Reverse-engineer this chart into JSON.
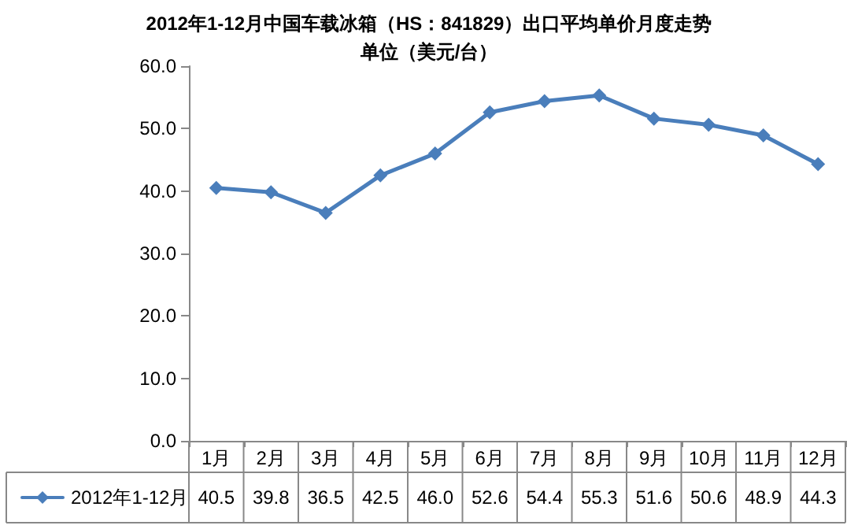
{
  "chart_data": {
    "type": "line",
    "title": "2012年1-12月中国车载冰箱（HS：841829）出口平均单价月度走势",
    "subtitle": "单位（美元/台）",
    "categories": [
      "1月",
      "2月",
      "3月",
      "4月",
      "5月",
      "6月",
      "7月",
      "8月",
      "9月",
      "10月",
      "11月",
      "12月"
    ],
    "series": [
      {
        "name": "2012年1-12月",
        "color": "#4a7ebb",
        "values": [
          40.5,
          39.8,
          36.5,
          42.5,
          46.0,
          52.6,
          54.4,
          55.3,
          51.6,
          50.6,
          48.9,
          44.3
        ],
        "value_labels": [
          "40.5",
          "39.8",
          "36.5",
          "42.5",
          "46.0",
          "52.6",
          "54.4",
          "55.3",
          "51.6",
          "50.6",
          "48.9",
          "44.3"
        ]
      }
    ],
    "ylim": [
      0,
      60
    ],
    "yticks": [
      {
        "value": 0,
        "label": "0.0"
      },
      {
        "value": 10,
        "label": "10.0"
      },
      {
        "value": 20,
        "label": "20.0"
      },
      {
        "value": 30,
        "label": "30.0"
      },
      {
        "value": 40,
        "label": "40.0"
      },
      {
        "value": 50,
        "label": "50.0"
      },
      {
        "value": 60,
        "label": "60.0"
      }
    ],
    "legend": "bottom left",
    "marker": "diamond",
    "line_style": "solid"
  }
}
